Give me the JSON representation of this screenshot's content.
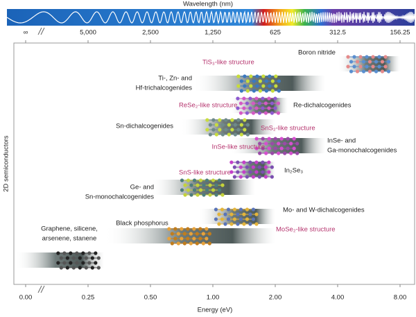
{
  "wavelength_axis": {
    "title": "Wavelength (nm)",
    "ticks": [
      "∞",
      "5,000",
      "2,500",
      "1,250",
      "625",
      "312.5",
      "156.25"
    ]
  },
  "energy_axis": {
    "title": "Energy (eV)",
    "ticks": [
      {
        "value": 0,
        "label": "0.00"
      },
      {
        "value": 0.25,
        "label": "0.25"
      },
      {
        "value": 0.5,
        "label": "0.50"
      },
      {
        "value": 1,
        "label": "1.00"
      },
      {
        "value": 2,
        "label": "2.00"
      },
      {
        "value": 4,
        "label": "4.00"
      },
      {
        "value": 8,
        "label": "8.00"
      }
    ]
  },
  "y_label": "2D semiconductors",
  "bands": [
    {
      "label": [
        "Graphene, silicene,",
        "arsenene, stanene"
      ],
      "range": [
        0,
        0.3
      ]
    },
    {
      "label": [
        "Black phosphorus"
      ],
      "range": [
        0.3,
        2.0
      ]
    },
    {
      "label": [
        "Mo- and W-dichalcogenides"
      ],
      "structure": "MoSe₂-like structure",
      "range": [
        0.85,
        2.0
      ]
    },
    {
      "label": [
        "Ge- and",
        "Sn-monochalcogenides"
      ],
      "structure": "SnS-like structure",
      "range": [
        0.5,
        1.6
      ]
    },
    {
      "label": [
        "In₂Se₃"
      ],
      "range": [
        1.2,
        2.0
      ]
    },
    {
      "label": [
        "InSe- and",
        "Ga-monochalcogenides"
      ],
      "structure": "InSe-like structure",
      "range": [
        1.2,
        3.5
      ]
    },
    {
      "label": [
        "Sn-dichalcogenides"
      ],
      "structure": "SnS₂-like structure",
      "range": [
        0.7,
        2.0
      ]
    },
    {
      "label": [
        "Re-dichalcogenides"
      ],
      "structure": "ReSe₂-like structure",
      "range": [
        1.2,
        2.3
      ]
    },
    {
      "label": [
        "Ti-, Zn- and",
        "Hf-trichalcogenides"
      ],
      "structure": "TiS₃-like structure",
      "range": [
        0.8,
        3.5
      ]
    },
    {
      "label": [
        "Boron nitride"
      ],
      "range": [
        4,
        8
      ]
    }
  ]
}
